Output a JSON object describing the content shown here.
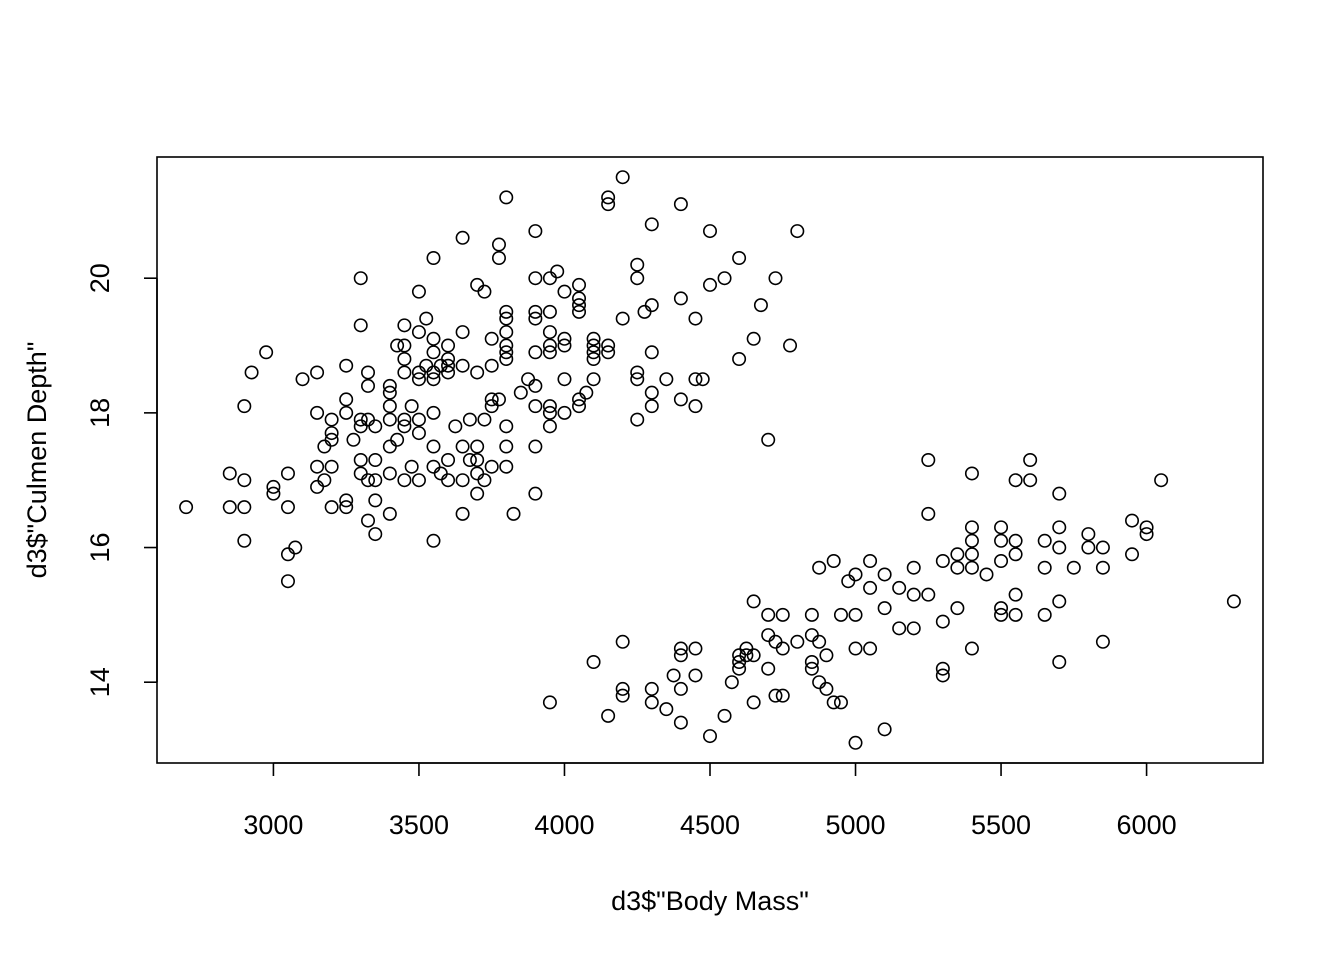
{
  "chart_data": {
    "type": "scatter",
    "title": "",
    "xlabel": "d3$\"Body Mass\"",
    "ylabel": "d3$\"Culmen Depth\"",
    "xlim": [
      2600,
      6400
    ],
    "ylim": [
      12.8,
      21.8
    ],
    "xticks": [
      3000,
      3500,
      4000,
      4500,
      5000,
      5500,
      6000
    ],
    "yticks": [
      14,
      16,
      18,
      20
    ],
    "grid": false,
    "marker": "open-circle",
    "series": [
      {
        "points": [
          [
            2700,
            16.6
          ],
          [
            2850,
            17.1
          ],
          [
            2850,
            16.6
          ],
          [
            2900,
            17.0
          ],
          [
            2900,
            16.6
          ],
          [
            2900,
            16.1
          ],
          [
            2900,
            18.1
          ],
          [
            2925,
            18.6
          ],
          [
            2975,
            18.9
          ],
          [
            3000,
            16.8
          ],
          [
            3000,
            16.9
          ],
          [
            3050,
            15.9
          ],
          [
            3050,
            15.5
          ],
          [
            3050,
            16.6
          ],
          [
            3050,
            17.1
          ],
          [
            3075,
            16.0
          ],
          [
            3100,
            18.5
          ],
          [
            3150,
            18.6
          ],
          [
            3150,
            18.0
          ],
          [
            3150,
            17.2
          ],
          [
            3150,
            16.9
          ],
          [
            3175,
            17.0
          ],
          [
            3175,
            17.5
          ],
          [
            3200,
            17.7
          ],
          [
            3200,
            17.6
          ],
          [
            3200,
            17.9
          ],
          [
            3200,
            17.2
          ],
          [
            3200,
            16.6
          ],
          [
            3250,
            18.7
          ],
          [
            3250,
            18.2
          ],
          [
            3250,
            18.0
          ],
          [
            3250,
            16.7
          ],
          [
            3250,
            16.6
          ],
          [
            3275,
            17.6
          ],
          [
            3300,
            20.0
          ],
          [
            3300,
            19.3
          ],
          [
            3300,
            17.9
          ],
          [
            3300,
            17.8
          ],
          [
            3300,
            17.3
          ],
          [
            3300,
            17.1
          ],
          [
            3325,
            18.6
          ],
          [
            3325,
            18.4
          ],
          [
            3325,
            17.9
          ],
          [
            3325,
            17.0
          ],
          [
            3325,
            16.4
          ],
          [
            3350,
            17.8
          ],
          [
            3350,
            17.3
          ],
          [
            3350,
            17.0
          ],
          [
            3350,
            16.7
          ],
          [
            3350,
            16.2
          ],
          [
            3400,
            18.4
          ],
          [
            3400,
            18.3
          ],
          [
            3400,
            18.1
          ],
          [
            3400,
            17.9
          ],
          [
            3400,
            17.5
          ],
          [
            3400,
            17.1
          ],
          [
            3400,
            16.5
          ],
          [
            3425,
            19.0
          ],
          [
            3425,
            17.6
          ],
          [
            3450,
            19.3
          ],
          [
            3450,
            19.0
          ],
          [
            3450,
            18.8
          ],
          [
            3450,
            18.6
          ],
          [
            3450,
            17.9
          ],
          [
            3450,
            17.8
          ],
          [
            3450,
            17.0
          ],
          [
            3475,
            18.1
          ],
          [
            3475,
            17.2
          ],
          [
            3500,
            19.8
          ],
          [
            3500,
            19.2
          ],
          [
            3500,
            18.6
          ],
          [
            3500,
            18.5
          ],
          [
            3500,
            17.9
          ],
          [
            3500,
            17.7
          ],
          [
            3500,
            17.0
          ],
          [
            3525,
            19.4
          ],
          [
            3525,
            18.7
          ],
          [
            3550,
            20.3
          ],
          [
            3550,
            19.1
          ],
          [
            3550,
            18.9
          ],
          [
            3550,
            18.6
          ],
          [
            3550,
            18.5
          ],
          [
            3550,
            18.0
          ],
          [
            3550,
            17.5
          ],
          [
            3550,
            17.2
          ],
          [
            3550,
            16.1
          ],
          [
            3575,
            18.7
          ],
          [
            3575,
            17.1
          ],
          [
            3600,
            19.0
          ],
          [
            3600,
            18.8
          ],
          [
            3600,
            18.7
          ],
          [
            3600,
            18.6
          ],
          [
            3600,
            17.3
          ],
          [
            3600,
            17.0
          ],
          [
            3625,
            17.8
          ],
          [
            3650,
            20.6
          ],
          [
            3650,
            19.2
          ],
          [
            3650,
            18.7
          ],
          [
            3650,
            17.5
          ],
          [
            3650,
            17.0
          ],
          [
            3650,
            16.5
          ],
          [
            3675,
            17.9
          ],
          [
            3675,
            17.3
          ],
          [
            3700,
            19.9
          ],
          [
            3700,
            18.6
          ],
          [
            3700,
            17.5
          ],
          [
            3700,
            17.3
          ],
          [
            3700,
            17.1
          ],
          [
            3700,
            16.8
          ],
          [
            3725,
            19.8
          ],
          [
            3725,
            17.9
          ],
          [
            3725,
            17.0
          ],
          [
            3750,
            19.1
          ],
          [
            3750,
            18.7
          ],
          [
            3750,
            18.2
          ],
          [
            3750,
            18.1
          ],
          [
            3750,
            17.2
          ],
          [
            3775,
            20.5
          ],
          [
            3775,
            20.3
          ],
          [
            3775,
            18.2
          ],
          [
            3800,
            21.2
          ],
          [
            3800,
            19.5
          ],
          [
            3800,
            19.4
          ],
          [
            3800,
            19.2
          ],
          [
            3800,
            19.0
          ],
          [
            3800,
            18.9
          ],
          [
            3800,
            18.8
          ],
          [
            3800,
            17.8
          ],
          [
            3800,
            17.5
          ],
          [
            3800,
            17.2
          ],
          [
            3825,
            16.5
          ],
          [
            3850,
            18.3
          ],
          [
            3875,
            18.5
          ],
          [
            3900,
            20.7
          ],
          [
            3900,
            20.0
          ],
          [
            3900,
            19.5
          ],
          [
            3900,
            19.4
          ],
          [
            3900,
            18.9
          ],
          [
            3900,
            18.4
          ],
          [
            3900,
            18.1
          ],
          [
            3900,
            17.5
          ],
          [
            3900,
            16.8
          ],
          [
            3950,
            20.0
          ],
          [
            3950,
            19.5
          ],
          [
            3950,
            19.2
          ],
          [
            3950,
            19.0
          ],
          [
            3950,
            18.9
          ],
          [
            3950,
            18.1
          ],
          [
            3950,
            18.0
          ],
          [
            3950,
            17.8
          ],
          [
            3975,
            20.1
          ],
          [
            4000,
            19.8
          ],
          [
            4000,
            19.1
          ],
          [
            4000,
            19.0
          ],
          [
            4000,
            18.5
          ],
          [
            4000,
            18.0
          ],
          [
            4050,
            19.9
          ],
          [
            4050,
            19.7
          ],
          [
            4050,
            19.6
          ],
          [
            4050,
            19.5
          ],
          [
            4050,
            18.2
          ],
          [
            4050,
            18.1
          ],
          [
            4075,
            18.3
          ],
          [
            4100,
            19.1
          ],
          [
            4100,
            19.0
          ],
          [
            4100,
            18.9
          ],
          [
            4100,
            18.8
          ],
          [
            4100,
            18.5
          ],
          [
            4150,
            21.2
          ],
          [
            4150,
            21.1
          ],
          [
            4150,
            19.0
          ],
          [
            4150,
            18.9
          ],
          [
            4200,
            21.5
          ],
          [
            4200,
            19.4
          ],
          [
            4250,
            20.2
          ],
          [
            4250,
            20.0
          ],
          [
            4250,
            18.6
          ],
          [
            4250,
            18.5
          ],
          [
            4250,
            17.9
          ],
          [
            4275,
            19.5
          ],
          [
            4300,
            20.8
          ],
          [
            4300,
            19.6
          ],
          [
            4300,
            18.9
          ],
          [
            4300,
            18.3
          ],
          [
            4300,
            18.1
          ],
          [
            4350,
            18.5
          ],
          [
            4400,
            21.1
          ],
          [
            4400,
            19.7
          ],
          [
            4400,
            18.2
          ],
          [
            4450,
            19.4
          ],
          [
            4450,
            18.5
          ],
          [
            4450,
            18.1
          ],
          [
            4475,
            18.5
          ],
          [
            4500,
            20.7
          ],
          [
            4500,
            19.9
          ],
          [
            4550,
            20.0
          ],
          [
            4600,
            20.3
          ],
          [
            4600,
            18.8
          ],
          [
            4650,
            19.1
          ],
          [
            4675,
            19.6
          ],
          [
            4700,
            17.6
          ],
          [
            4725,
            20.0
          ],
          [
            4775,
            19.0
          ],
          [
            4800,
            20.7
          ],
          [
            3950,
            13.7
          ],
          [
            4100,
            14.3
          ],
          [
            4150,
            13.5
          ],
          [
            4200,
            14.6
          ],
          [
            4200,
            13.9
          ],
          [
            4200,
            13.8
          ],
          [
            4300,
            13.9
          ],
          [
            4300,
            13.7
          ],
          [
            4350,
            13.6
          ],
          [
            4375,
            14.1
          ],
          [
            4400,
            14.5
          ],
          [
            4400,
            14.4
          ],
          [
            4400,
            13.9
          ],
          [
            4400,
            13.4
          ],
          [
            4450,
            14.5
          ],
          [
            4450,
            14.1
          ],
          [
            4500,
            13.2
          ],
          [
            4550,
            13.5
          ],
          [
            4575,
            14.0
          ],
          [
            4600,
            14.4
          ],
          [
            4600,
            14.3
          ],
          [
            4600,
            14.2
          ],
          [
            4625,
            14.5
          ],
          [
            4625,
            14.4
          ],
          [
            4650,
            15.2
          ],
          [
            4650,
            14.4
          ],
          [
            4650,
            13.7
          ],
          [
            4700,
            15.0
          ],
          [
            4700,
            14.7
          ],
          [
            4700,
            14.2
          ],
          [
            4725,
            14.6
          ],
          [
            4725,
            13.8
          ],
          [
            4750,
            15.0
          ],
          [
            4750,
            14.5
          ],
          [
            4750,
            13.8
          ],
          [
            4800,
            14.6
          ],
          [
            4850,
            15.0
          ],
          [
            4850,
            14.7
          ],
          [
            4850,
            14.3
          ],
          [
            4850,
            14.2
          ],
          [
            4875,
            15.7
          ],
          [
            4875,
            14.6
          ],
          [
            4875,
            14.0
          ],
          [
            4900,
            14.4
          ],
          [
            4900,
            13.9
          ],
          [
            4925,
            15.8
          ],
          [
            4925,
            13.7
          ],
          [
            4950,
            15.0
          ],
          [
            4950,
            13.7
          ],
          [
            4975,
            15.5
          ],
          [
            5000,
            15.6
          ],
          [
            5000,
            15.0
          ],
          [
            5000,
            14.5
          ],
          [
            5000,
            13.1
          ],
          [
            5050,
            15.8
          ],
          [
            5050,
            15.4
          ],
          [
            5050,
            14.5
          ],
          [
            5100,
            15.6
          ],
          [
            5100,
            15.1
          ],
          [
            5100,
            13.3
          ],
          [
            5150,
            15.4
          ],
          [
            5150,
            14.8
          ],
          [
            5200,
            15.7
          ],
          [
            5200,
            15.3
          ],
          [
            5200,
            14.8
          ],
          [
            5250,
            17.3
          ],
          [
            5250,
            16.5
          ],
          [
            5250,
            15.3
          ],
          [
            5300,
            15.8
          ],
          [
            5300,
            14.9
          ],
          [
            5300,
            14.2
          ],
          [
            5300,
            14.1
          ],
          [
            5350,
            15.9
          ],
          [
            5350,
            15.7
          ],
          [
            5350,
            15.1
          ],
          [
            5400,
            17.1
          ],
          [
            5400,
            16.3
          ],
          [
            5400,
            16.1
          ],
          [
            5400,
            15.9
          ],
          [
            5400,
            15.7
          ],
          [
            5400,
            14.5
          ],
          [
            5450,
            15.6
          ],
          [
            5500,
            16.3
          ],
          [
            5500,
            16.1
          ],
          [
            5500,
            15.8
          ],
          [
            5500,
            15.1
          ],
          [
            5500,
            15.0
          ],
          [
            5550,
            17.0
          ],
          [
            5550,
            16.1
          ],
          [
            5550,
            15.9
          ],
          [
            5550,
            15.3
          ],
          [
            5550,
            15.0
          ],
          [
            5600,
            17.3
          ],
          [
            5600,
            17.0
          ],
          [
            5650,
            16.1
          ],
          [
            5650,
            15.7
          ],
          [
            5650,
            15.0
          ],
          [
            5700,
            16.8
          ],
          [
            5700,
            16.3
          ],
          [
            5700,
            16.0
          ],
          [
            5700,
            15.2
          ],
          [
            5700,
            14.3
          ],
          [
            5750,
            15.7
          ],
          [
            5800,
            16.2
          ],
          [
            5800,
            16.0
          ],
          [
            5850,
            16.0
          ],
          [
            5850,
            15.7
          ],
          [
            5850,
            14.6
          ],
          [
            5950,
            16.4
          ],
          [
            5950,
            15.9
          ],
          [
            6000,
            16.3
          ],
          [
            6000,
            16.2
          ],
          [
            6050,
            17.0
          ],
          [
            6300,
            15.2
          ]
        ]
      }
    ]
  }
}
